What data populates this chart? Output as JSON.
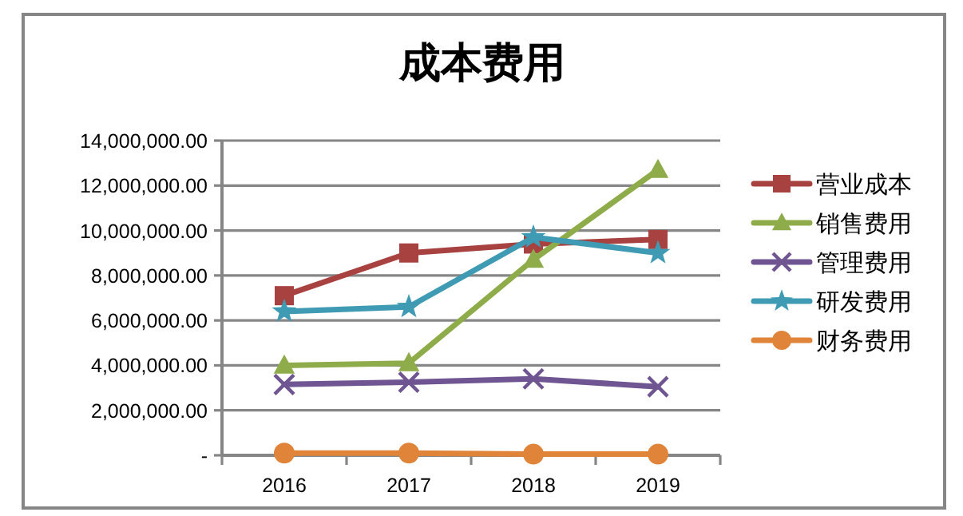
{
  "chart_data": {
    "type": "line",
    "title": "成本费用",
    "categories": [
      "2016",
      "2017",
      "2018",
      "2019"
    ],
    "series": [
      {
        "name": "营业成本",
        "color": "#a84240",
        "marker": "square",
        "values": [
          7100000,
          9000000,
          9400000,
          9600000
        ]
      },
      {
        "name": "销售费用",
        "color": "#8fac4a",
        "marker": "triangle",
        "values": [
          4000000,
          4100000,
          8700000,
          12700000
        ]
      },
      {
        "name": "管理费用",
        "color": "#6f5591",
        "marker": "cross",
        "values": [
          3150000,
          3250000,
          3400000,
          3050000
        ]
      },
      {
        "name": "研发费用",
        "color": "#3f9bb3",
        "marker": "star",
        "values": [
          6400000,
          6600000,
          9700000,
          9000000
        ]
      },
      {
        "name": "财务费用",
        "color": "#e0843a",
        "marker": "circle",
        "values": [
          100000,
          100000,
          50000,
          50000
        ]
      }
    ],
    "ylim": [
      0,
      14000000
    ],
    "yticks": [
      {
        "value": 0,
        "label": "-"
      },
      {
        "value": 2000000,
        "label": "2,000,000.00"
      },
      {
        "value": 4000000,
        "label": "4,000,000.00"
      },
      {
        "value": 6000000,
        "label": "6,000,000.00"
      },
      {
        "value": 8000000,
        "label": "8,000,000.00"
      },
      {
        "value": 10000000,
        "label": "10,000,000.00"
      },
      {
        "value": 12000000,
        "label": "12,000,000.00"
      },
      {
        "value": 14000000,
        "label": "14,000,000.00"
      }
    ],
    "grid": "y",
    "legend": "right",
    "line_style": "solid"
  }
}
